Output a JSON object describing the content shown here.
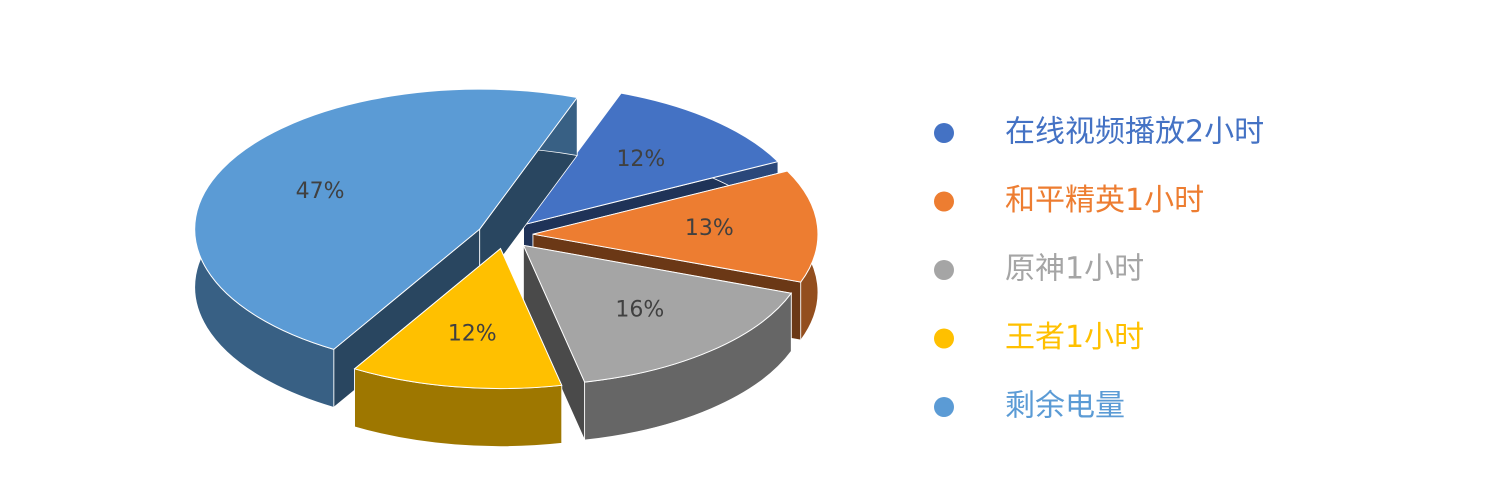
{
  "chart_data": {
    "type": "pie",
    "categories": [
      "在线视频播放2小时",
      "和平精英1小时",
      "原神1小时",
      "王者1小时",
      "剩余电量"
    ],
    "values": [
      12,
      13,
      16,
      12,
      47
    ],
    "value_labels": [
      "12%",
      "13%",
      "16%",
      "12%",
      "47%"
    ],
    "colors": [
      "#4472c4",
      "#ed7d31",
      "#a5a5a5",
      "#ffc000",
      "#5b9bd5"
    ],
    "legend": "right"
  }
}
